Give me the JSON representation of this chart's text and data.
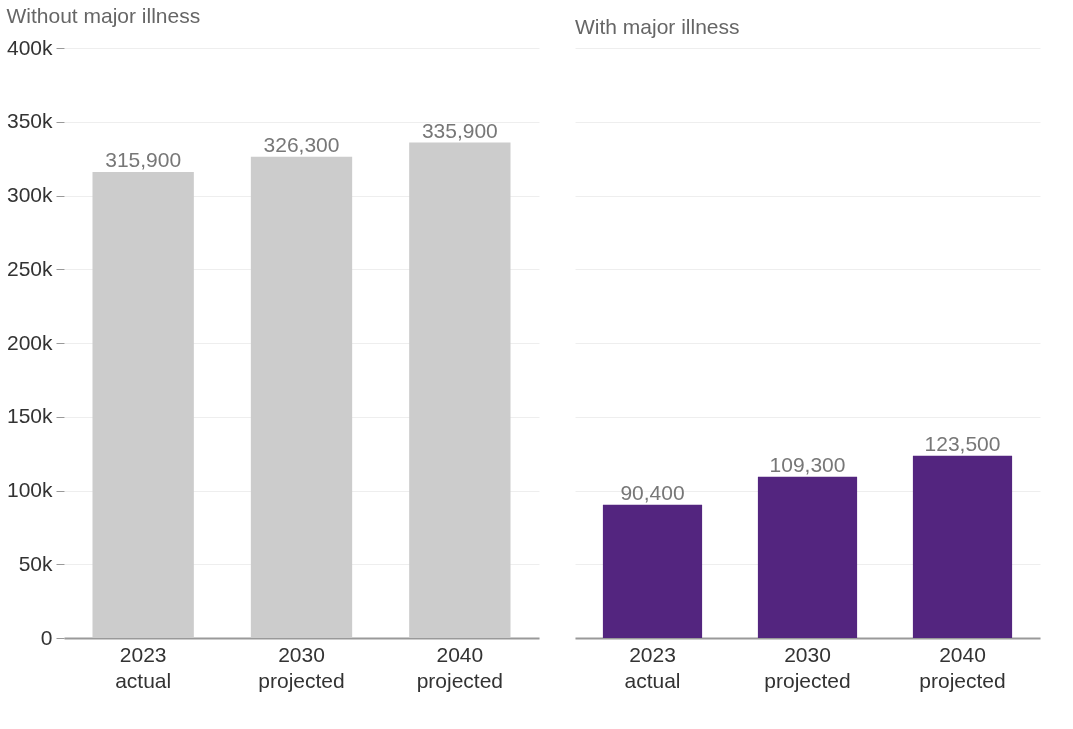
{
  "chart_data": [
    {
      "type": "bar",
      "title": "Without major illness",
      "categories": [
        "2023 actual",
        "2030 projected",
        "2040 projected"
      ],
      "values": [
        315900,
        326300,
        335900
      ],
      "value_labels": [
        "315,900",
        "326,300",
        "335,900"
      ],
      "color": "#cccccc",
      "ylim": [
        0,
        400000
      ],
      "yticks": [
        0,
        {
          "value": 50000,
          "label": "50k"
        },
        {
          "value": 100000,
          "label": "100k"
        },
        {
          "value": 150000,
          "label": "150k"
        },
        {
          "value": 200000,
          "label": "200k"
        },
        {
          "value": 250000,
          "label": "250k"
        },
        {
          "value": 300000,
          "label": "300k"
        },
        {
          "value": 350000,
          "label": "350k"
        },
        {
          "value": 400000,
          "label": "400k"
        }
      ],
      "grid": "y"
    },
    {
      "type": "bar",
      "title": "With major illness",
      "categories": [
        "2023 actual",
        "2030 projected",
        "2040 projected"
      ],
      "values": [
        90400,
        109300,
        123500
      ],
      "value_labels": [
        "90,400",
        "109,300",
        "123,500"
      ],
      "color": "#53257f",
      "ylim": [
        0,
        400000
      ],
      "yticks": [
        0,
        50000,
        100000,
        150000,
        200000,
        250000,
        300000,
        350000,
        400000
      ],
      "grid": "y",
      "tick_labels": "x"
    }
  ]
}
